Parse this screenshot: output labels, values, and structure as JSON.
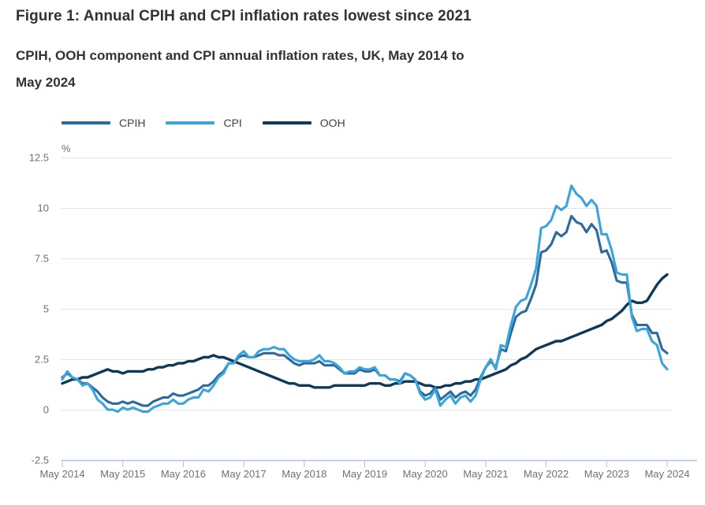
{
  "figure": {
    "title": "Figure 1: Annual CPIH and CPI inflation rates lowest since 2021",
    "subtitle_line1": "CPIH, OOH component and CPI annual inflation rates, UK, May 2014 to",
    "subtitle_line2": "May 2024"
  },
  "chart_data": {
    "type": "line",
    "unit_label": "%",
    "x_interval": "monthly",
    "x_range": "May 2014 to May 2024",
    "x_tick_labels": [
      "May 2014",
      "May 2015",
      "May 2016",
      "May 2017",
      "May 2018",
      "May 2019",
      "May 2020",
      "May 2021",
      "May 2022",
      "May 2023",
      "May 2024"
    ],
    "y_ticks": [
      12.5,
      10,
      7.5,
      5,
      2.5,
      0,
      -2.5
    ],
    "ylim": [
      -2.5,
      12.5
    ],
    "grid": "horizontal",
    "legend_position": "top-left",
    "series": [
      {
        "name": "CPIH",
        "color": "#2b6a9e",
        "values": [
          1.6,
          1.8,
          1.6,
          1.5,
          1.3,
          1.3,
          1.1,
          0.9,
          0.6,
          0.4,
          0.3,
          0.3,
          0.4,
          0.3,
          0.4,
          0.3,
          0.2,
          0.2,
          0.4,
          0.5,
          0.6,
          0.6,
          0.8,
          0.7,
          0.7,
          0.8,
          0.9,
          1.0,
          1.2,
          1.2,
          1.4,
          1.7,
          1.9,
          2.3,
          2.3,
          2.6,
          2.7,
          2.6,
          2.6,
          2.7,
          2.8,
          2.8,
          2.8,
          2.7,
          2.7,
          2.5,
          2.3,
          2.2,
          2.3,
          2.3,
          2.3,
          2.4,
          2.2,
          2.2,
          2.2,
          2.0,
          1.8,
          1.8,
          1.8,
          2.0,
          1.9,
          1.9,
          2.0,
          1.7,
          1.7,
          1.5,
          1.5,
          1.4,
          1.8,
          1.7,
          1.5,
          0.9,
          0.7,
          0.8,
          1.1,
          0.5,
          0.7,
          0.9,
          0.6,
          0.8,
          0.9,
          0.7,
          1.0,
          1.6,
          2.1,
          2.4,
          2.1,
          3.0,
          2.9,
          3.8,
          4.6,
          4.8,
          4.9,
          5.5,
          6.2,
          7.8,
          7.9,
          8.2,
          8.8,
          8.6,
          8.8,
          9.6,
          9.3,
          9.2,
          8.8,
          9.2,
          8.9,
          7.8,
          7.9,
          7.3,
          6.4,
          6.3,
          6.3,
          4.7,
          4.2,
          4.2,
          4.2,
          3.8,
          3.8,
          3.0,
          2.8
        ]
      },
      {
        "name": "CPI",
        "color": "#3aa4dc",
        "values": [
          1.5,
          1.9,
          1.6,
          1.5,
          1.2,
          1.3,
          1.0,
          0.5,
          0.3,
          0.0,
          0.0,
          -0.1,
          0.1,
          0.0,
          0.1,
          0.0,
          -0.1,
          -0.1,
          0.1,
          0.2,
          0.3,
          0.3,
          0.5,
          0.3,
          0.3,
          0.5,
          0.6,
          0.6,
          1.0,
          0.9,
          1.2,
          1.6,
          1.8,
          2.3,
          2.3,
          2.7,
          2.9,
          2.6,
          2.6,
          2.9,
          3.0,
          3.0,
          3.1,
          3.0,
          3.0,
          2.7,
          2.5,
          2.4,
          2.4,
          2.4,
          2.5,
          2.7,
          2.4,
          2.4,
          2.3,
          2.1,
          1.8,
          1.9,
          1.9,
          2.1,
          2.0,
          2.0,
          2.1,
          1.7,
          1.7,
          1.5,
          1.5,
          1.3,
          1.8,
          1.7,
          1.5,
          0.8,
          0.5,
          0.6,
          1.0,
          0.2,
          0.5,
          0.7,
          0.3,
          0.6,
          0.7,
          0.4,
          0.7,
          1.5,
          2.1,
          2.5,
          2.0,
          3.2,
          3.1,
          4.2,
          5.1,
          5.4,
          5.5,
          6.2,
          7.0,
          9.0,
          9.1,
          9.4,
          10.1,
          9.9,
          10.1,
          11.1,
          10.7,
          10.5,
          10.1,
          10.4,
          10.1,
          8.7,
          8.7,
          7.9,
          6.8,
          6.7,
          6.7,
          4.6,
          3.9,
          4.0,
          4.0,
          3.4,
          3.2,
          2.3,
          2.0
        ]
      },
      {
        "name": "OOH",
        "color": "#0f3a57",
        "values": [
          1.3,
          1.4,
          1.5,
          1.5,
          1.6,
          1.6,
          1.7,
          1.8,
          1.9,
          2.0,
          1.9,
          1.9,
          1.8,
          1.9,
          1.9,
          1.9,
          1.9,
          2.0,
          2.0,
          2.1,
          2.1,
          2.2,
          2.2,
          2.3,
          2.3,
          2.4,
          2.4,
          2.5,
          2.6,
          2.6,
          2.7,
          2.6,
          2.6,
          2.5,
          2.4,
          2.3,
          2.2,
          2.1,
          2.0,
          1.9,
          1.8,
          1.7,
          1.6,
          1.5,
          1.4,
          1.3,
          1.3,
          1.2,
          1.2,
          1.2,
          1.1,
          1.1,
          1.1,
          1.1,
          1.2,
          1.2,
          1.2,
          1.2,
          1.2,
          1.2,
          1.2,
          1.3,
          1.3,
          1.3,
          1.2,
          1.2,
          1.3,
          1.3,
          1.4,
          1.4,
          1.4,
          1.3,
          1.2,
          1.2,
          1.1,
          1.1,
          1.2,
          1.2,
          1.3,
          1.3,
          1.4,
          1.4,
          1.5,
          1.5,
          1.6,
          1.7,
          1.8,
          1.9,
          2.0,
          2.2,
          2.3,
          2.5,
          2.6,
          2.8,
          3.0,
          3.1,
          3.2,
          3.3,
          3.4,
          3.4,
          3.5,
          3.6,
          3.7,
          3.8,
          3.9,
          4.0,
          4.1,
          4.2,
          4.4,
          4.5,
          4.7,
          4.9,
          5.2,
          5.4,
          5.3,
          5.3,
          5.4,
          5.8,
          6.2,
          6.5,
          6.7
        ]
      }
    ]
  },
  "colors": {
    "axis_line": "#b1c0dc",
    "gridline": "#e3e3e3",
    "tick_label": "#707071",
    "title_text": "#333132",
    "legend_text": "#414042"
  }
}
